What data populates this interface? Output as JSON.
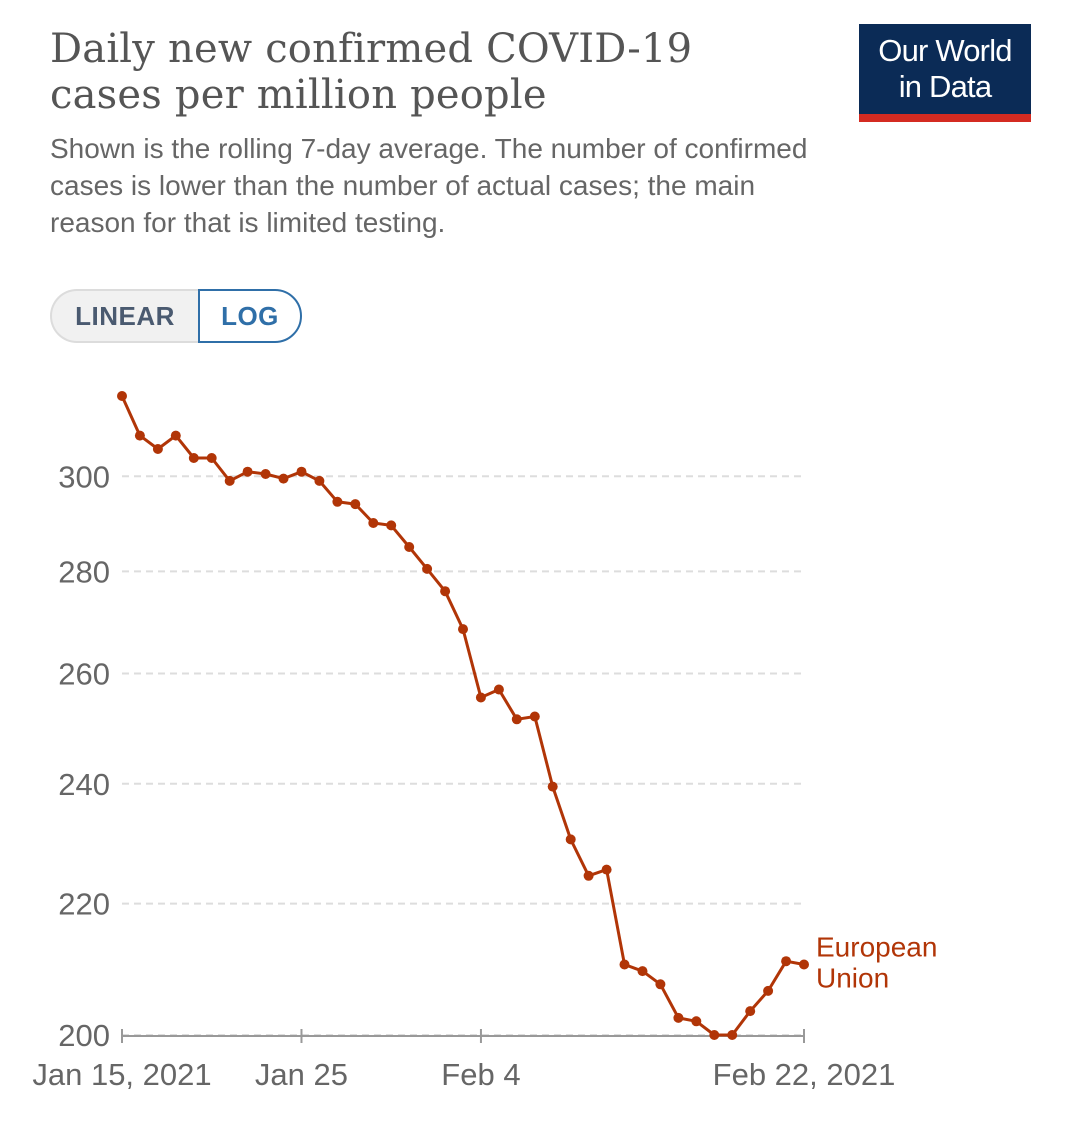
{
  "chart_data": {
    "type": "line",
    "title": "Daily new confirmed COVID-19 cases per million people",
    "subtitle": "Shown is the rolling 7-day average. The number of confirmed cases is lower than the number of actual cases; the main reason for that is limited testing.",
    "y_scale": "log",
    "ylim": [
      200,
      318
    ],
    "y_ticks": [
      {
        "value": 200,
        "label": "200"
      },
      {
        "value": 220,
        "label": "220"
      },
      {
        "value": 240,
        "label": "240"
      },
      {
        "value": 260,
        "label": "260"
      },
      {
        "value": 280,
        "label": "280"
      },
      {
        "value": 300,
        "label": "300"
      }
    ],
    "x_ticks": [
      {
        "day": 0,
        "label": "Jan 15, 2021"
      },
      {
        "day": 10,
        "label": "Jan 25"
      },
      {
        "day": 20,
        "label": "Feb 4"
      },
      {
        "day": 38,
        "label": "Feb 22, 2021"
      }
    ],
    "xlim": [
      0,
      38
    ],
    "grid": true,
    "series": [
      {
        "name": "European Union",
        "label_lines": [
          "European",
          "Union"
        ],
        "color": "#b13507",
        "x": [
          0,
          1,
          2,
          3,
          4,
          5,
          6,
          7,
          8,
          9,
          10,
          11,
          12,
          13,
          14,
          15,
          16,
          17,
          18,
          19,
          20,
          21,
          22,
          23,
          24,
          25,
          26,
          27,
          28,
          29,
          30,
          31,
          32,
          33,
          34,
          35,
          36,
          37,
          38
        ],
        "values": [
          318,
          309,
          306,
          309,
          304,
          304,
          299,
          301,
          300.5,
          299.5,
          301,
          299,
          294.5,
          294,
          290,
          289.5,
          285,
          280.5,
          276,
          268.5,
          255.5,
          257,
          251.5,
          252,
          239.5,
          230.5,
          224.5,
          225.5,
          210.5,
          209.5,
          207.5,
          202.5,
          202,
          200,
          200,
          203.5,
          206.5,
          211,
          210.5
        ]
      }
    ]
  },
  "controls": {
    "linear_label": "LINEAR",
    "log_label": "LOG",
    "selected": "LOG"
  },
  "logo": {
    "line1": "Our World",
    "line2": "in Data"
  },
  "colors": {
    "series": "#b13507",
    "grid": "#dddddd",
    "axis": "#999999",
    "text": "#666666",
    "logo_bg": "#0b2b56",
    "logo_bar": "#d42b21",
    "toggle_selected": "#2f6fa8"
  }
}
